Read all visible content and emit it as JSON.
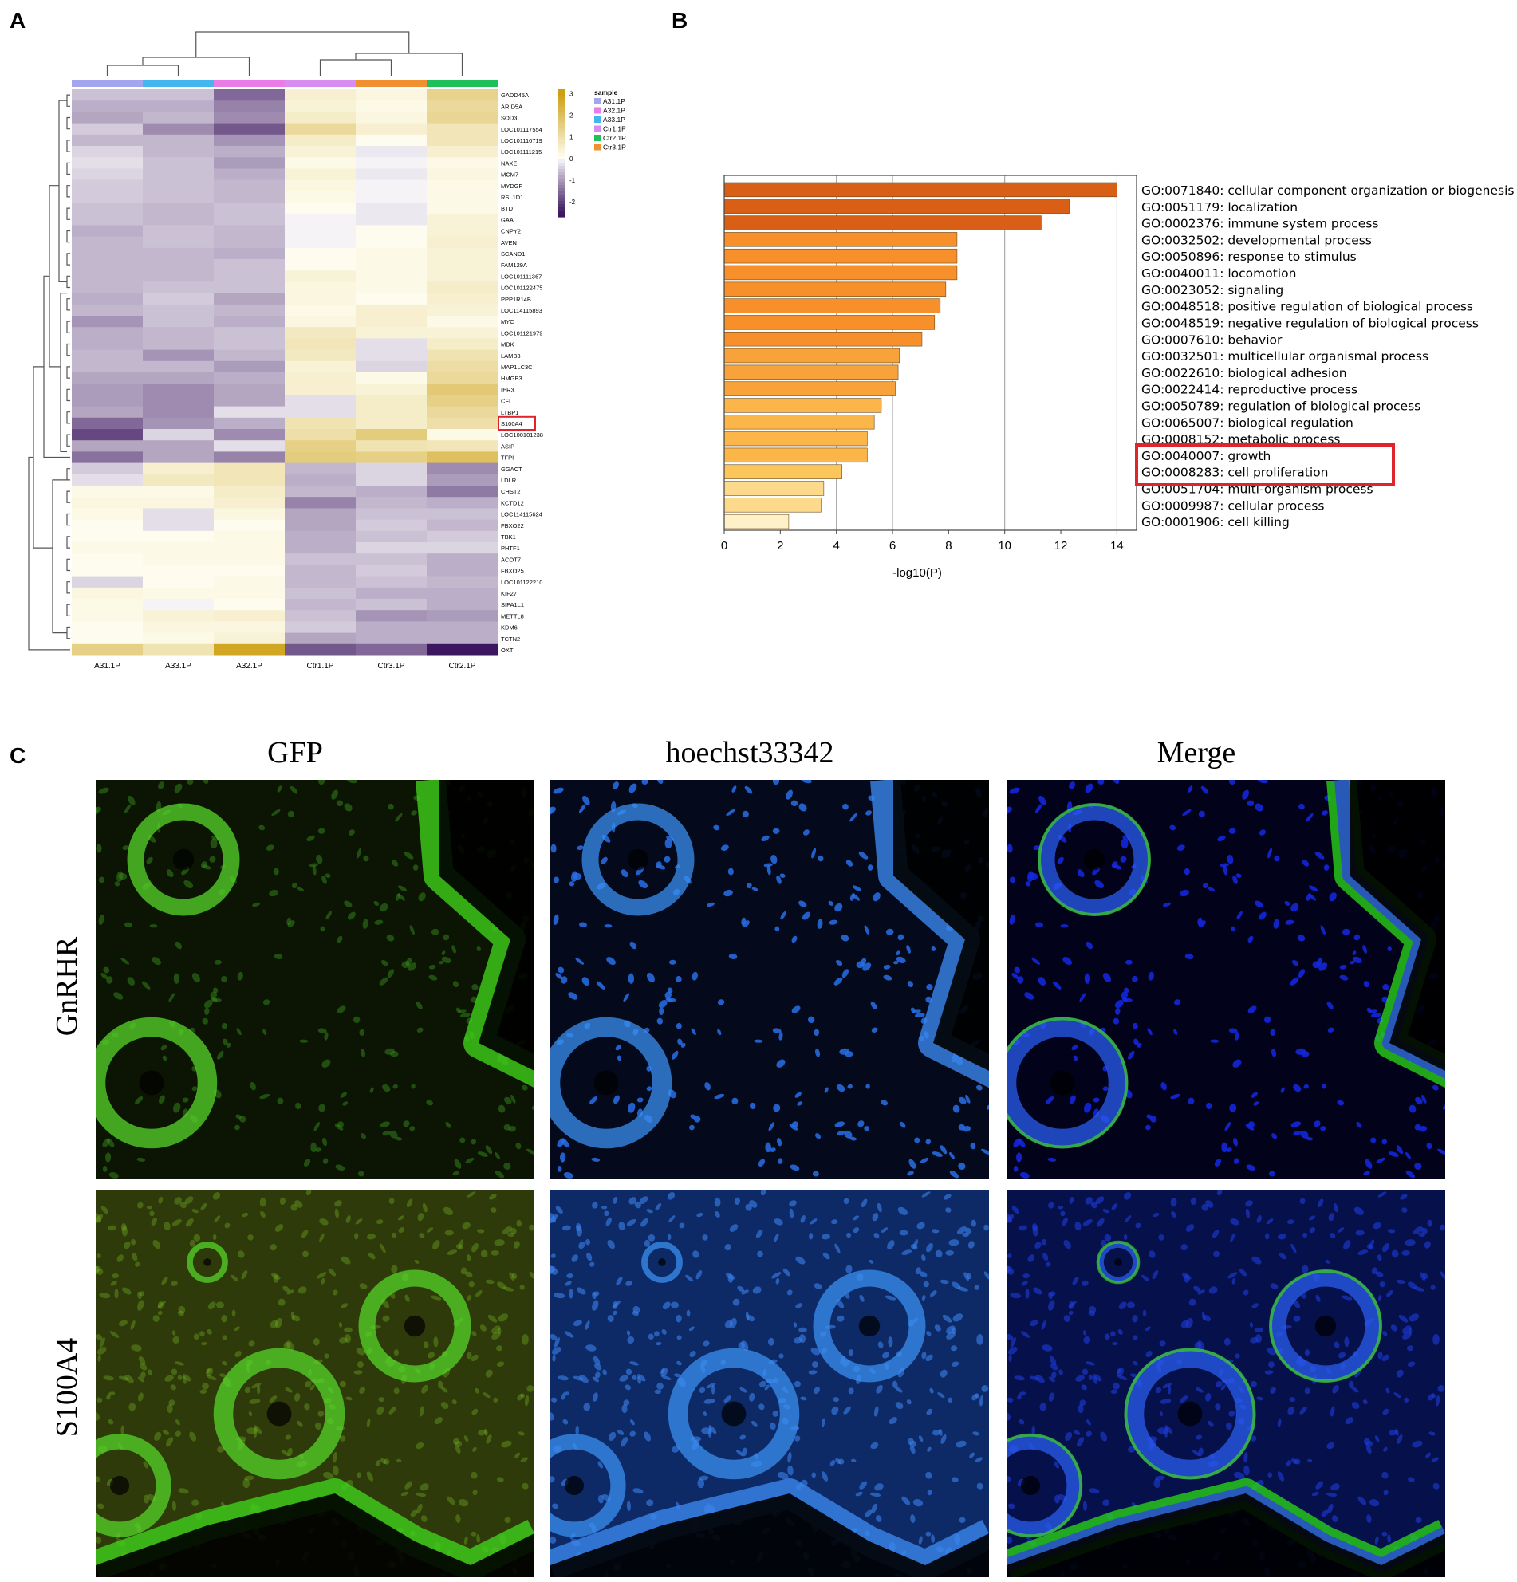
{
  "panels": {
    "a": "A",
    "b": "B",
    "c": "C"
  },
  "heatmap": {
    "legend_title": "sample",
    "legend_items": [
      {
        "label": "A31.1P",
        "color": "#a3a6ee"
      },
      {
        "label": "A32.1P",
        "color": "#ea7ce8"
      },
      {
        "label": "A33.1P",
        "color": "#43b6ef"
      },
      {
        "label": "Ctr1.1P",
        "color": "#d78cf0"
      },
      {
        "label": "Ctr2.1P",
        "color": "#1fbf5a"
      },
      {
        "label": "Ctr3.1P",
        "color": "#f0902f"
      }
    ],
    "scale_ticks": [
      "3",
      "2",
      "1",
      "0",
      "-1",
      "-2"
    ],
    "columns": [
      "A31.1P",
      "A33.1P",
      "A32.1P",
      "Ctr1.1P",
      "Ctr3.1P",
      "Ctr2.1P"
    ],
    "column_colors": [
      "#a3a6ee",
      "#43b6ef",
      "#ea7ce8",
      "#d78cf0",
      "#f0902f",
      "#1fbf5a"
    ],
    "genes": [
      "GADD45A",
      "ARID5A",
      "SOD3",
      "LOC101117554",
      "LOC101110719",
      "LOC101111215",
      "NAXE",
      "MCM7",
      "MYDGF",
      "RSL1D1",
      "BTD",
      "GAA",
      "CNPY2",
      "AVEN",
      "SCAND1",
      "FAM129A",
      "LOC101111367",
      "LOC101122475",
      "PPP1R14B",
      "LOC114115893",
      "MYC",
      "LOC101121979",
      "MDK",
      "LAMB3",
      "MAP1LC3C",
      "HMGB3",
      "IER3",
      "CFI",
      "LTBP1",
      "S100A4",
      "LOC100101238",
      "ASIP",
      "TFPI",
      "GGACT",
      "LDLR",
      "CHST2",
      "KCTD12",
      "LOC114115624",
      "FBXO22",
      "TBK1",
      "PHTF1",
      "ACOT7",
      "FBXO25",
      "LOC101122210",
      "KIF27",
      "SIPA1L1",
      "METTL8",
      "KDM6",
      "TCTN2",
      "OXT"
    ],
    "highlight_gene": "S100A4",
    "values": [
      [
        -0.6,
        -0.6,
        -1.6,
        0.5,
        0.3,
        1.4
      ],
      [
        -0.8,
        -0.8,
        -1.3,
        0.4,
        0.2,
        1.2
      ],
      [
        -0.9,
        -0.7,
        -1.2,
        0.6,
        0.3,
        1.3
      ],
      [
        -0.5,
        -1.2,
        -1.8,
        1.2,
        0.5,
        0.8
      ],
      [
        -0.7,
        -0.7,
        -1.1,
        0.6,
        0.1,
        0.8
      ],
      [
        -0.4,
        -0.7,
        -0.8,
        0.4,
        -0.2,
        0.5
      ],
      [
        -0.3,
        -0.6,
        -1.0,
        0.2,
        -0.1,
        0.2
      ],
      [
        -0.4,
        -0.6,
        -0.8,
        0.4,
        -0.2,
        0.3
      ],
      [
        -0.5,
        -0.6,
        -0.7,
        0.3,
        -0.1,
        0.2
      ],
      [
        -0.5,
        -0.6,
        -0.7,
        0.2,
        -0.1,
        0.2
      ],
      [
        -0.6,
        -0.7,
        -0.6,
        0.1,
        -0.2,
        0.2
      ],
      [
        -0.6,
        -0.7,
        -0.6,
        -0.1,
        -0.2,
        0.4
      ],
      [
        -0.8,
        -0.6,
        -0.7,
        -0.1,
        0.1,
        0.4
      ],
      [
        -0.7,
        -0.6,
        -0.7,
        -0.1,
        0.1,
        0.5
      ],
      [
        -0.7,
        -0.7,
        -0.8,
        0.1,
        0.2,
        0.4
      ],
      [
        -0.7,
        -0.7,
        -0.6,
        0.1,
        0.2,
        0.4
      ],
      [
        -0.7,
        -0.7,
        -0.6,
        0.4,
        0.2,
        0.4
      ],
      [
        -0.7,
        -0.6,
        -0.6,
        0.3,
        0.2,
        0.6
      ],
      [
        -0.8,
        -0.5,
        -0.9,
        0.3,
        0.1,
        0.5
      ],
      [
        -0.7,
        -0.6,
        -0.7,
        0.2,
        0.5,
        0.4
      ],
      [
        -1.1,
        -0.6,
        -0.8,
        0.3,
        0.5,
        0.2
      ],
      [
        -0.8,
        -0.7,
        -0.6,
        0.7,
        0.4,
        0.4
      ],
      [
        -0.8,
        -0.7,
        -0.6,
        0.8,
        -0.3,
        0.6
      ],
      [
        -0.7,
        -1.1,
        -0.7,
        0.7,
        -0.3,
        0.9
      ],
      [
        -0.7,
        -0.7,
        -1.0,
        0.4,
        -0.4,
        1.1
      ],
      [
        -0.9,
        -0.9,
        -0.8,
        0.5,
        0.2,
        1.2
      ],
      [
        -1.0,
        -1.2,
        -0.9,
        0.5,
        0.4,
        1.7
      ],
      [
        -1.0,
        -1.2,
        -0.9,
        -0.3,
        0.6,
        1.5
      ],
      [
        -0.9,
        -1.2,
        -0.3,
        -0.3,
        0.6,
        1.2
      ],
      [
        -1.6,
        -1.1,
        -0.8,
        0.9,
        0.6,
        1.0
      ],
      [
        -2.0,
        -0.4,
        -1.2,
        1.0,
        1.6,
        0.2
      ],
      [
        -0.9,
        -0.9,
        -0.3,
        1.5,
        0.9,
        0.8
      ],
      [
        -1.5,
        -0.9,
        -1.3,
        1.6,
        1.5,
        2.0
      ],
      [
        -0.5,
        0.5,
        0.8,
        -0.7,
        -0.4,
        -1.2
      ],
      [
        -0.3,
        0.7,
        0.8,
        -0.8,
        -0.4,
        -1.0
      ],
      [
        0.2,
        0.2,
        0.6,
        -0.7,
        -0.8,
        -1.4
      ],
      [
        0.3,
        0.3,
        0.5,
        -1.3,
        -0.7,
        -0.8
      ],
      [
        0.2,
        -0.3,
        0.3,
        -0.9,
        -0.6,
        -0.6
      ],
      [
        0.1,
        -0.3,
        0.1,
        -0.9,
        -0.5,
        -0.7
      ],
      [
        0.1,
        0.1,
        0.2,
        -0.8,
        -0.6,
        -0.5
      ],
      [
        0.2,
        0.2,
        0.2,
        -0.8,
        -0.4,
        -0.4
      ],
      [
        0.1,
        0.2,
        0.2,
        -0.6,
        -0.6,
        -0.8
      ],
      [
        0.1,
        0.1,
        0.1,
        -0.7,
        -0.5,
        -0.8
      ],
      [
        -0.4,
        0.1,
        0.2,
        -0.7,
        -0.6,
        -0.7
      ],
      [
        0.3,
        0.2,
        0.2,
        -0.6,
        -0.8,
        -0.8
      ],
      [
        0.2,
        -0.1,
        0.1,
        -0.7,
        -0.6,
        -0.8
      ],
      [
        0.2,
        0.4,
        0.5,
        -0.6,
        -1.1,
        -1.0
      ],
      [
        0.1,
        0.3,
        0.3,
        -0.5,
        -0.8,
        -0.8
      ],
      [
        0.1,
        0.2,
        0.4,
        -0.9,
        -0.8,
        -0.8
      ],
      [
        1.5,
        0.9,
        2.8,
        -1.8,
        -1.6,
        -2.6
      ]
    ]
  },
  "chart_data": {
    "type": "bar",
    "orientation": "horizontal",
    "categories": [
      "GO:0071840: cellular component organization or biogenesis",
      "GO:0051179: localization",
      "GO:0002376: immune system process",
      "GO:0032502: developmental process",
      "GO:0050896: response to stimulus",
      "GO:0040011: locomotion",
      "GO:0023052: signaling",
      "GO:0048518: positive regulation of biological process",
      "GO:0048519: negative regulation of biological process",
      "GO:0007610: behavior",
      "GO:0032501: multicellular organismal process",
      "GO:0022610: biological adhesion",
      "GO:0022414: reproductive process",
      "GO:0050789: regulation of biological process",
      "GO:0065007: biological regulation",
      "GO:0008152: metabolic process",
      "GO:0040007: growth",
      "GO:0008283: cell proliferation",
      "GO:0051704: multi-organism process",
      "GO:0009987: cellular process",
      "GO:0001906: cell killing"
    ],
    "values": [
      14.0,
      12.3,
      11.3,
      8.3,
      8.3,
      8.3,
      7.9,
      7.7,
      7.5,
      7.05,
      6.25,
      6.2,
      6.1,
      5.6,
      5.35,
      5.1,
      5.1,
      4.2,
      3.55,
      3.45,
      2.3
    ],
    "bar_colors": [
      "#d95e16",
      "#d95e16",
      "#d95e16",
      "#f7902a",
      "#f7902a",
      "#f7902a",
      "#f7902a",
      "#f7902a",
      "#f7902a",
      "#f7902a",
      "#f7a23a",
      "#f7a23a",
      "#f7a23a",
      "#fbb549",
      "#fbb549",
      "#fbb549",
      "#fbb549",
      "#fcc65b",
      "#fdd98c",
      "#fdd98c",
      "#fef1c7"
    ],
    "xlabel": "-log10(P)",
    "xlim": [
      0,
      14.7
    ],
    "xticks": [
      0,
      2,
      4,
      6,
      8,
      10,
      12,
      14
    ],
    "highlighted": [
      "GO:0040007: growth",
      "GO:0008283: cell proliferation"
    ],
    "grid": "vertical"
  },
  "micrographs": {
    "column_titles": [
      "GFP",
      "hoechst33342",
      "Merge"
    ],
    "row_titles": [
      "GnRHR",
      "S100A4"
    ]
  }
}
